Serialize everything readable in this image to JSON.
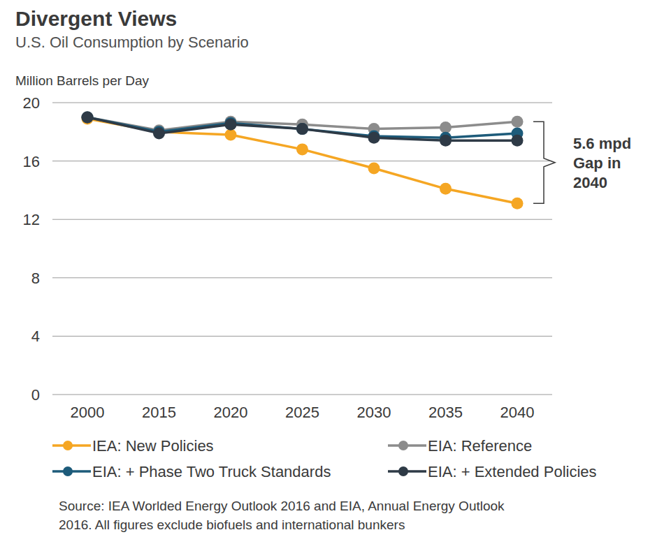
{
  "chart_data": {
    "type": "line",
    "title": "Divergent Views",
    "subtitle": "U.S. Oil Consumption by Scenario",
    "y_label": "Million Barrels per Day",
    "categories": [
      "2000",
      "2015",
      "2020",
      "2025",
      "2030",
      "2035",
      "2040"
    ],
    "series": [
      {
        "name": "IEA: New Policies",
        "color": "#f5a623",
        "marker": "circle",
        "line_style": "solid",
        "values": [
          18.9,
          18.0,
          17.8,
          16.8,
          15.5,
          14.1,
          13.1
        ]
      },
      {
        "name": "EIA: Reference",
        "color": "#8c8c8c",
        "marker": "circle",
        "line_style": "solid",
        "values": [
          19.0,
          18.1,
          18.7,
          18.5,
          18.2,
          18.3,
          18.7
        ]
      },
      {
        "name": "EIA: + Phase Two Truck Standards",
        "color": "#1d5b7a",
        "marker": "circle",
        "line_style": "solid",
        "values": [
          19.0,
          18.0,
          18.6,
          18.2,
          17.7,
          17.6,
          17.9
        ]
      },
      {
        "name": "EIA: + Extended Policies",
        "color": "#2e3a46",
        "marker": "circle",
        "line_style": "solid",
        "values": [
          19.0,
          17.9,
          18.5,
          18.2,
          17.6,
          17.4,
          17.4
        ]
      }
    ],
    "ylim": [
      0,
      20
    ],
    "yticks": [
      0,
      4,
      8,
      12,
      16,
      20
    ],
    "grid": true,
    "legend": "bottom",
    "annotation": [
      "5.6 mpd",
      "Gap in",
      "2040"
    ],
    "source": [
      "Source: IEA Worlded Energy Outlook 2016 and EIA, Annual Energy Outlook",
      "2016. All figures exclude biofuels and international bunkers"
    ]
  }
}
